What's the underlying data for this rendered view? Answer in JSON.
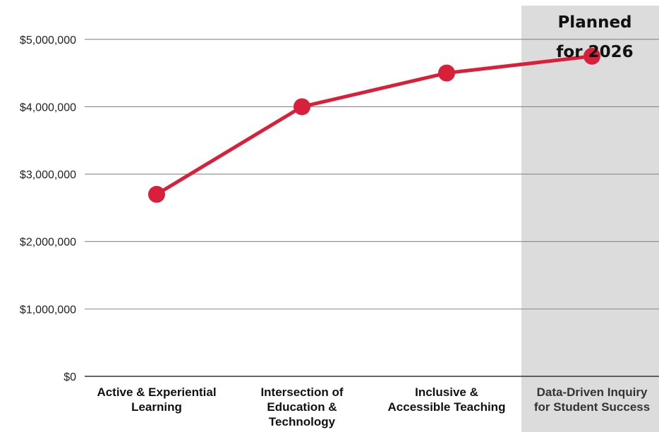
{
  "chart_data": {
    "type": "line",
    "title": "",
    "xlabel": "",
    "ylabel": "",
    "categories": [
      [
        "Active & Experiential",
        "Learning"
      ],
      [
        "Intersection of",
        "Education &",
        "Technology"
      ],
      [
        "Inclusive &",
        "Accessible Teaching"
      ],
      [
        "Data-Driven Inquiry",
        "for Student Success"
      ]
    ],
    "series": [
      {
        "values": [
          2700000,
          4000000,
          4500000,
          4750000
        ]
      }
    ],
    "ylim": [
      0,
      5500000
    ],
    "yticks": [
      0,
      1000000,
      2000000,
      3000000,
      4000000,
      5000000
    ],
    "ytick_labels": [
      "$0",
      "$1,000,000",
      "$2,000,000",
      "$3,000,000",
      "$4,000,000",
      "$5,000,000"
    ],
    "grid": true,
    "line_color": "#d8203a",
    "shaded_region": {
      "category_index": 3,
      "label": [
        "Planned",
        "for 2026"
      ],
      "color": "#dcdcdc"
    }
  }
}
